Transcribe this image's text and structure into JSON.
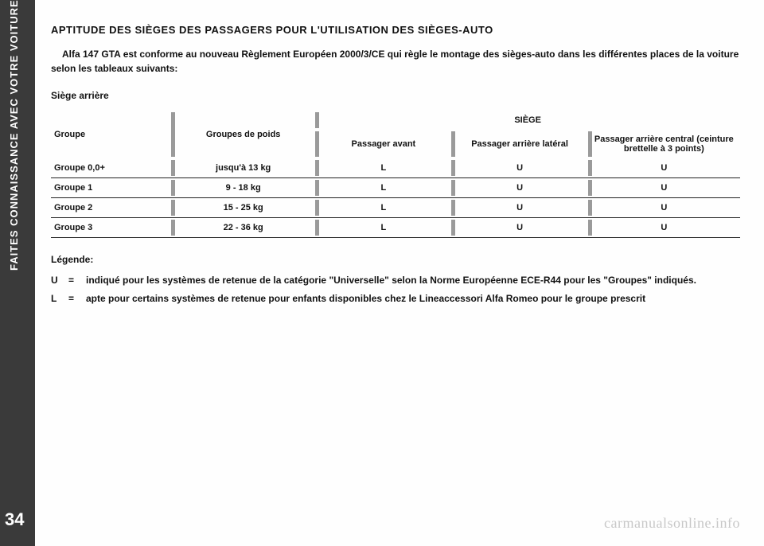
{
  "sidebar": {
    "label_bold": "FAITES CONNAISSANCE AVEC VOTRE VOITURE"
  },
  "page_number": "34",
  "heading": "APTITUDE DES SIÈGES DES PASSAGERS POUR L'UTILISATION DES SIÈGES-AUTO",
  "intro": "Alfa 147 GTA est conforme au nouveau Règlement Européen 2000/3/CE qui règle le montage des sièges-auto dans les différentes places de la voiture selon les tableaux suivants:",
  "section_sub": "Siège arrière",
  "table": {
    "headers": {
      "groupe": "Groupe",
      "poids": "Groupes de poids",
      "siege": "SIÈGE",
      "col3": "Passager avant",
      "col4": "Passager arrière latéral",
      "col5": "Passager arrière central (ceinture brettelle à 3 points)"
    },
    "rows": [
      {
        "g": "Groupe 0,0+",
        "p": "jusqu'à 13 kg",
        "c3": "L",
        "c4": "U",
        "c5": "U"
      },
      {
        "g": "Groupe 1",
        "p": "9 - 18 kg",
        "c3": "L",
        "c4": "U",
        "c5": "U"
      },
      {
        "g": "Groupe 2",
        "p": "15 - 25 kg",
        "c3": "L",
        "c4": "U",
        "c5": "U"
      },
      {
        "g": "Groupe 3",
        "p": "22 - 36 kg",
        "c3": "L",
        "c4": "U",
        "c5": "U"
      }
    ]
  },
  "legende": {
    "title": "Légende:",
    "items": [
      {
        "key": "U",
        "eq": "=",
        "txt": "indiqué pour les systèmes de retenue de la catégorie \"Universelle\" selon la Norme Européenne ECE-R44 pour les \"Groupes\" indiqués."
      },
      {
        "key": "L",
        "eq": "=",
        "txt": "apte pour certains systèmes de retenue pour enfants disponibles chez le Lineaccessori Alfa Romeo pour le groupe prescrit"
      }
    ]
  },
  "watermark": "carmanualsonline.info",
  "colors": {
    "dark": "#3a3a3a",
    "tick": "#9a9a9a",
    "text": "#111",
    "watermark": "#c8c8c8"
  }
}
